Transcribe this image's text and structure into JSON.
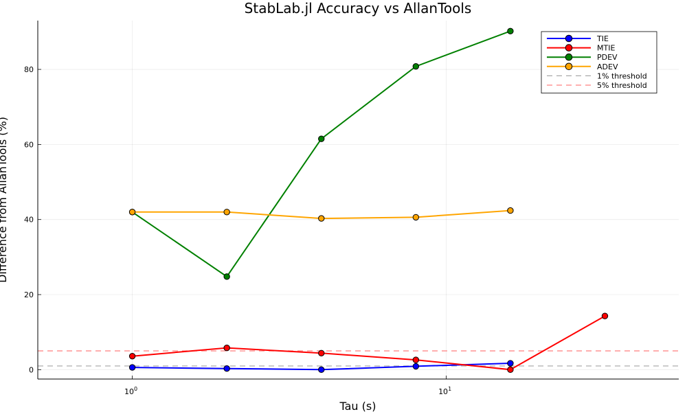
{
  "chart_data": {
    "type": "line",
    "title": "StabLab.jl Accuracy vs AllanTools",
    "xlabel": "Tau (s)",
    "ylabel": "Difference from AllanTools (%)",
    "x_scale": "log10",
    "xlim": [
      0.5,
      55
    ],
    "ylim": [
      -2.5,
      93
    ],
    "y_ticks": [
      0,
      20,
      40,
      60,
      80
    ],
    "x_ticks": [
      {
        "value": 1,
        "base": "10",
        "exp": "0"
      },
      {
        "value": 10,
        "base": "10",
        "exp": "1"
      }
    ],
    "grid": true,
    "legend_position": "top-right",
    "series": [
      {
        "name": "TIE",
        "color": "#0000ff",
        "marker": "circle",
        "line": "solid",
        "x": [
          1,
          2,
          4,
          8,
          16
        ],
        "y": [
          0.6,
          0.3,
          0.0,
          0.9,
          1.7
        ]
      },
      {
        "name": "MTIE",
        "color": "#ff0000",
        "marker": "circle",
        "line": "solid",
        "x": [
          1,
          2,
          4,
          8,
          16,
          32
        ],
        "y": [
          3.6,
          5.8,
          4.4,
          2.6,
          0.0,
          14.3
        ]
      },
      {
        "name": "PDEV",
        "color": "#008000",
        "marker": "circle",
        "line": "solid",
        "x": [
          1,
          2,
          4,
          8,
          16
        ],
        "y": [
          42.0,
          24.8,
          61.5,
          80.8,
          90.2
        ]
      },
      {
        "name": "ADEV",
        "color": "#ffa500",
        "marker": "circle",
        "line": "solid",
        "x": [
          1,
          2,
          4,
          8,
          16
        ],
        "y": [
          42.0,
          42.0,
          40.3,
          40.6,
          42.4
        ]
      },
      {
        "name": "1% threshold",
        "color": "#a8a8a8",
        "marker": "none",
        "line": "dashed",
        "x": [
          0.5,
          55
        ],
        "y": [
          1,
          1
        ]
      },
      {
        "name": "5% threshold",
        "color": "#ff8080",
        "marker": "none",
        "line": "dashed",
        "x": [
          0.5,
          55
        ],
        "y": [
          5,
          5
        ]
      }
    ]
  }
}
